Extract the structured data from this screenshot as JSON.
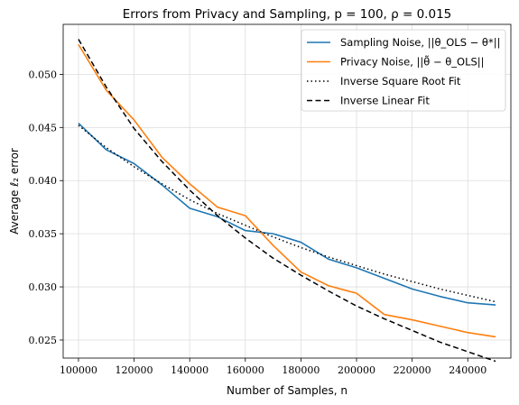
{
  "chart_data": {
    "type": "line",
    "title": "Errors from Privacy and Sampling, p = 100, ρ = 0.015",
    "xlabel": "Number of Samples, n",
    "ylabel": "Average ℓ₂ error",
    "xlim": [
      94500,
      255500
    ],
    "ylim": [
      0.0233,
      0.0547
    ],
    "xticks": [
      100000,
      120000,
      140000,
      160000,
      180000,
      200000,
      220000,
      240000
    ],
    "xtick_labels": [
      "100000",
      "120000",
      "140000",
      "160000",
      "180000",
      "200000",
      "220000",
      "240000"
    ],
    "yticks": [
      0.025,
      0.03,
      0.035,
      0.04,
      0.045,
      0.05
    ],
    "ytick_labels": [
      "0.025",
      "0.030",
      "0.035",
      "0.040",
      "0.045",
      "0.050"
    ],
    "grid": true,
    "legend_position": "top-right",
    "x": [
      100000,
      110000,
      120000,
      130000,
      140000,
      150000,
      160000,
      170000,
      180000,
      190000,
      200000,
      210000,
      220000,
      230000,
      240000,
      250000
    ],
    "series": [
      {
        "name": "Sampling Noise, ||θ_OLS − θ*||",
        "color": "#1f77b4",
        "style": "solid",
        "values": [
          0.0454,
          0.0429,
          0.0416,
          0.0396,
          0.0374,
          0.0366,
          0.0353,
          0.035,
          0.0342,
          0.0326,
          0.0318,
          0.0308,
          0.0298,
          0.0291,
          0.0285,
          0.0283
        ]
      },
      {
        "name": "Privacy Noise, ||θ̃ − θ_OLS||",
        "color": "#ff7f0e",
        "style": "solid",
        "values": [
          0.0528,
          0.0485,
          0.0457,
          0.0422,
          0.0397,
          0.0375,
          0.0367,
          0.0339,
          0.0314,
          0.0301,
          0.0294,
          0.0274,
          0.0269,
          0.0263,
          0.0257,
          0.0253
        ]
      },
      {
        "name": "Inverse Square Root Fit",
        "color": "#000000",
        "style": "dotted",
        "values": [
          0.0452,
          0.0431,
          0.0413,
          0.0397,
          0.0382,
          0.0369,
          0.0358,
          0.0347,
          0.0337,
          0.0328,
          0.032,
          0.0312,
          0.0305,
          0.0298,
          0.0292,
          0.0286
        ]
      },
      {
        "name": "Inverse Linear Fit",
        "color": "#000000",
        "style": "dashed",
        "values": [
          0.0533,
          0.0488,
          0.0449,
          0.0418,
          0.0391,
          0.0367,
          0.0346,
          0.0327,
          0.0311,
          0.0296,
          0.0282,
          0.027,
          0.0259,
          0.0248,
          0.0239,
          0.023
        ]
      }
    ]
  }
}
